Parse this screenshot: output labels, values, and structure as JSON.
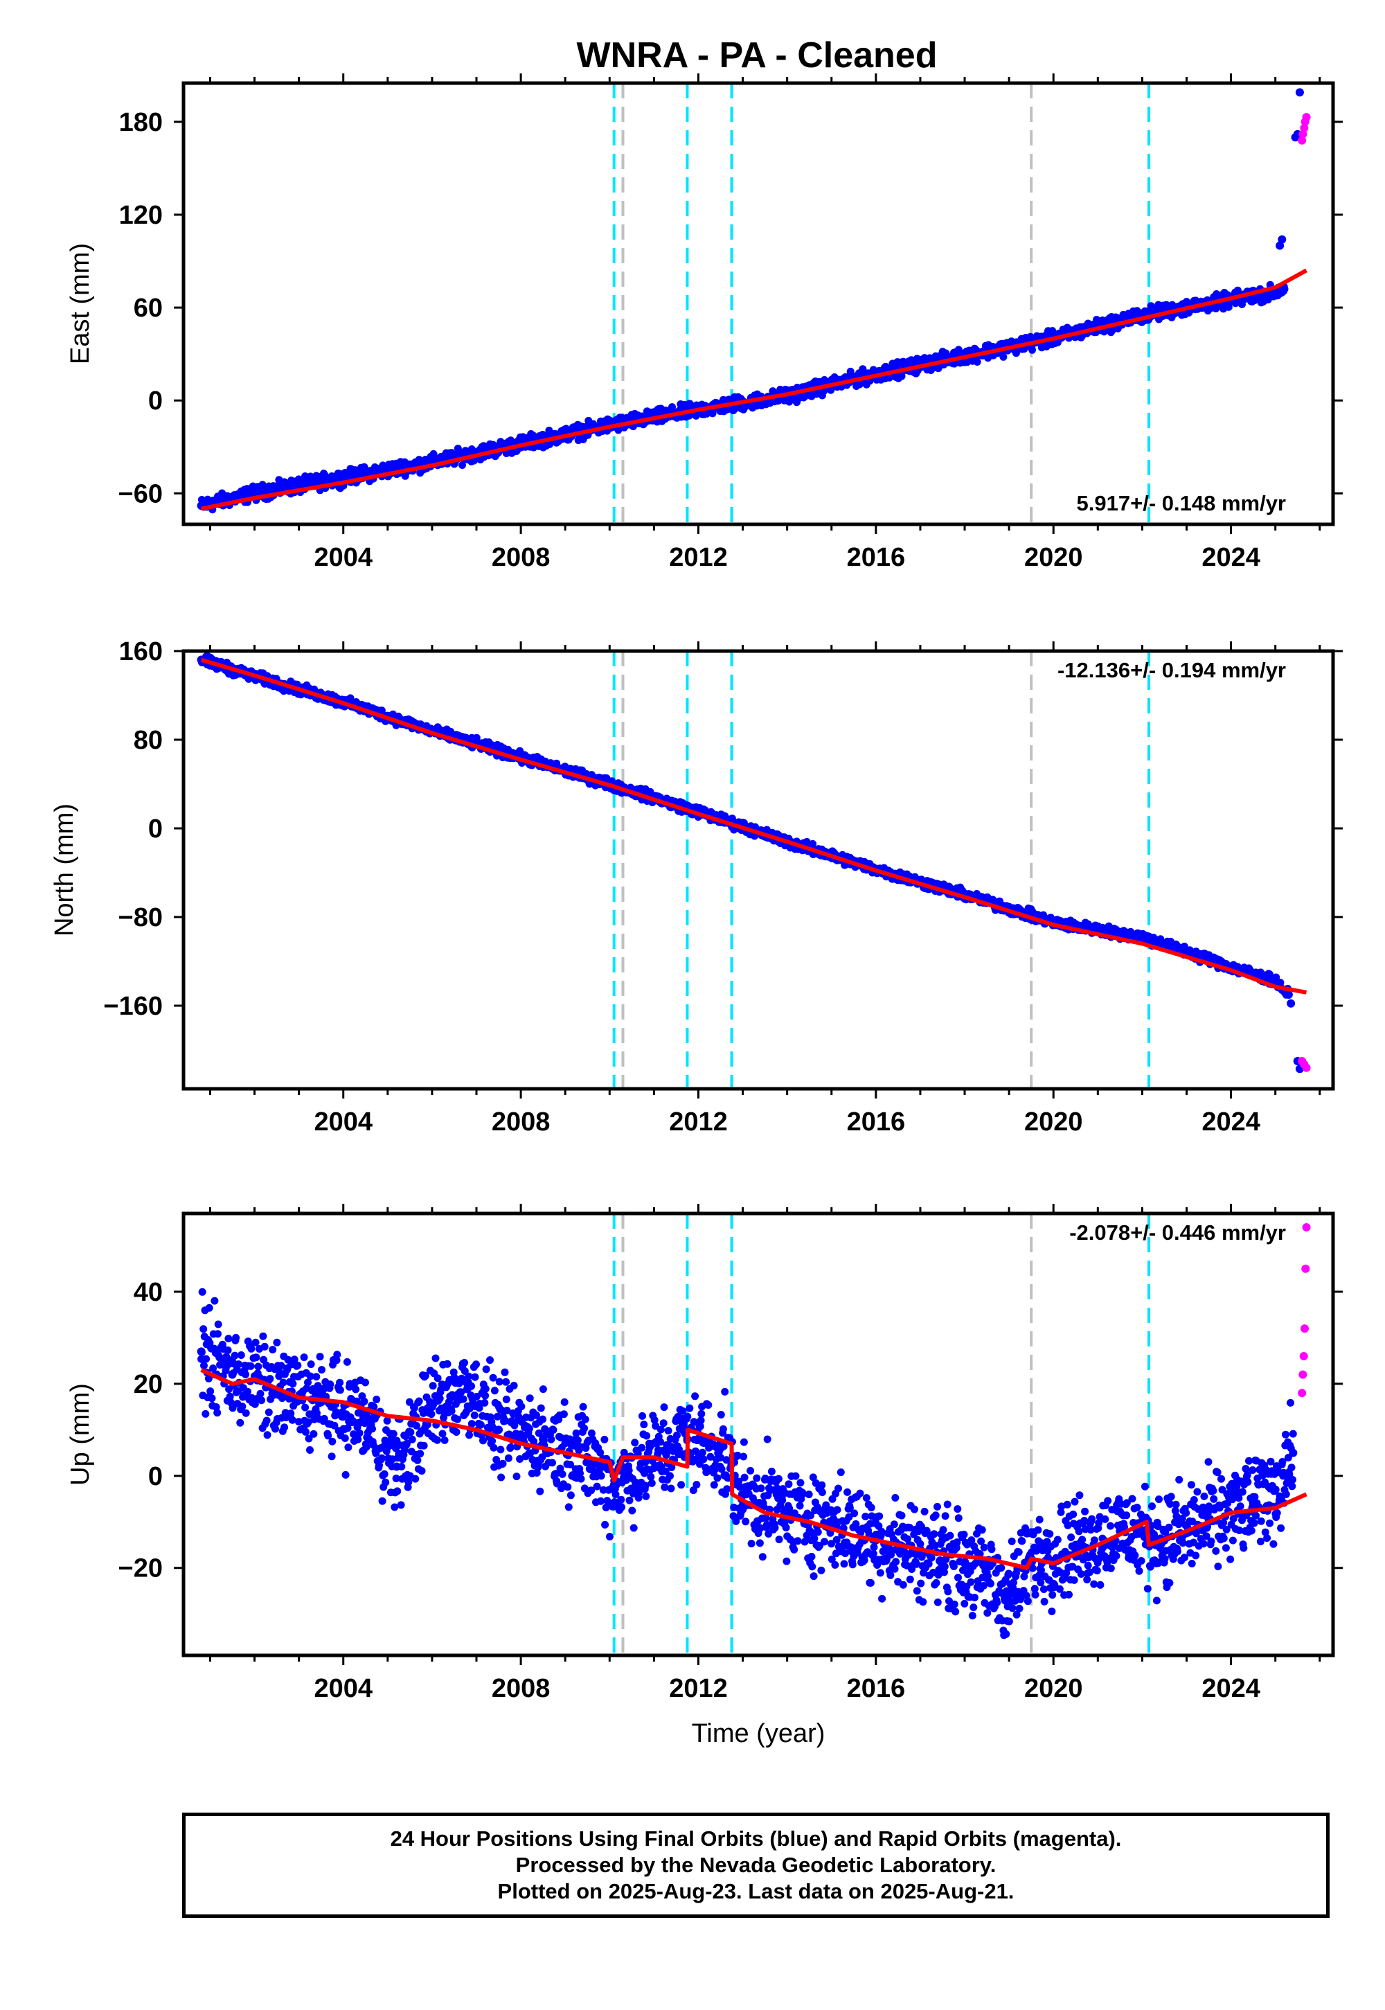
{
  "title": "WNRA  - PA - Cleaned",
  "xaxis_label": "Time (year)",
  "x_ticks": [
    2004,
    2008,
    2012,
    2016,
    2020,
    2024
  ],
  "xlim": [
    2000.4,
    2026.3
  ],
  "colors": {
    "final_orbits": "#0000ff",
    "rapid_orbits": "#ff00ff",
    "model": "#ff0000",
    "equipment_change": "#00e5ff",
    "other_event": "#c0c0c0"
  },
  "event_lines": [
    {
      "year": 2010.1,
      "color": "equipment_change"
    },
    {
      "year": 2010.3,
      "color": "other_event"
    },
    {
      "year": 2011.75,
      "color": "equipment_change"
    },
    {
      "year": 2012.75,
      "color": "equipment_change"
    },
    {
      "year": 2019.5,
      "color": "other_event"
    },
    {
      "year": 2022.15,
      "color": "equipment_change"
    }
  ],
  "chart_data": [
    {
      "type": "scatter",
      "ylabel": "East (mm)",
      "ylim": [
        -80,
        205
      ],
      "y_ticks": [
        -60,
        0,
        60,
        120,
        180
      ],
      "rate_text": "5.917+/- 0.148 mm/yr",
      "rate_position": "bottom-right",
      "series": [
        {
          "color": "final_orbits",
          "x": [
            2000.8,
            2002,
            2004,
            2006,
            2008,
            2010,
            2012,
            2014,
            2016,
            2018,
            2020,
            2022,
            2024,
            2025.0,
            2025.2
          ],
          "y": [
            -68,
            -60,
            -50,
            -40,
            -28,
            -16,
            -6,
            3,
            17,
            29,
            40,
            55,
            65,
            70,
            72
          ]
        },
        {
          "color": "final_orbits",
          "x": [
            2025.1,
            2025.15,
            2025.45,
            2025.5,
            2025.55
          ],
          "y": [
            100,
            104,
            170,
            172,
            199
          ]
        },
        {
          "color": "rapid_orbits",
          "x": [
            2025.6,
            2025.62,
            2025.65,
            2025.67,
            2025.7
          ],
          "y": [
            168,
            172,
            176,
            180,
            183
          ]
        }
      ],
      "model": {
        "x": [
          2000.8,
          2002,
          2004,
          2006,
          2008,
          2010,
          2012,
          2014,
          2016,
          2018,
          2020,
          2022,
          2024,
          2025.0,
          2025.7
        ],
        "y": [
          -70,
          -63,
          -53,
          -42,
          -29,
          -17,
          -6,
          4,
          16,
          28,
          40,
          53,
          66,
          73,
          84
        ]
      }
    },
    {
      "type": "scatter",
      "ylabel": "North (mm)",
      "ylim": [
        -235,
        160
      ],
      "y_ticks": [
        -160,
        -80,
        0,
        80,
        160
      ],
      "rate_text": "-12.136+/- 0.194 mm/yr",
      "rate_position": "top-right",
      "series": [
        {
          "color": "final_orbits",
          "x": [
            2000.8,
            2002,
            2004,
            2006,
            2008,
            2010,
            2012,
            2014,
            2016,
            2018,
            2020,
            2022,
            2024,
            2025.0,
            2025.3
          ],
          "y": [
            152,
            137,
            114,
            88,
            64,
            40,
            15,
            -12,
            -37,
            -60,
            -85,
            -98,
            -125,
            -138,
            -150
          ]
        },
        {
          "color": "final_orbits",
          "x": [
            2025.35,
            2025.5,
            2025.55
          ],
          "y": [
            -158,
            -210,
            -217
          ]
        },
        {
          "color": "rapid_orbits",
          "x": [
            2025.6,
            2025.65,
            2025.7
          ],
          "y": [
            -210,
            -213,
            -216
          ]
        }
      ],
      "model": {
        "x": [
          2000.8,
          2002,
          2004,
          2006,
          2008,
          2010,
          2012,
          2014,
          2016,
          2018,
          2020,
          2022,
          2024,
          2025.0,
          2025.7
        ],
        "y": [
          152,
          138,
          113,
          86,
          62,
          39,
          13,
          -12,
          -38,
          -62,
          -87,
          -104,
          -128,
          -143,
          -148
        ]
      }
    },
    {
      "type": "scatter",
      "ylabel": "Up (mm)",
      "ylim": [
        -39,
        57
      ],
      "y_ticks": [
        -20,
        0,
        20,
        40
      ],
      "rate_text": "-2.078+/- 0.446 mm/yr",
      "rate_position": "top-right",
      "series": [
        {
          "color": "final_orbits",
          "x": [
            2000.8,
            2001.5,
            2002.5,
            2003.5,
            2004.5,
            2005.2,
            2006,
            2006.8,
            2007.5,
            2008.5,
            2009.5,
            2010.1,
            2010.8,
            2011.75,
            2012.5,
            2013,
            2014,
            2015,
            2016,
            2017,
            2018,
            2019,
            2019.5,
            2020.5,
            2021.5,
            2022.5,
            2023.5,
            2024.5,
            2025.0,
            2025.4
          ],
          "y": [
            27,
            22,
            18,
            16,
            12,
            2,
            15,
            19,
            10,
            8,
            4,
            -2,
            3,
            8,
            6,
            -4,
            -8,
            -10,
            -14,
            -16,
            -19,
            -26,
            -18,
            -15,
            -12,
            -14,
            -10,
            -6,
            -3,
            5
          ]
        },
        {
          "color": "rapid_orbits",
          "x": [
            2025.6,
            2025.62,
            2025.64,
            2025.66,
            2025.68,
            2025.7
          ],
          "y": [
            18,
            22,
            26,
            32,
            45,
            54
          ]
        }
      ],
      "model": {
        "x": [
          2000.8,
          2001.5,
          2002,
          2003,
          2004,
          2005,
          2006,
          2007,
          2008,
          2009,
          2010,
          2010.1,
          2010.3,
          2011,
          2011.75,
          2011.76,
          2012.75,
          2012.76,
          2013.5,
          2014.5,
          2015.5,
          2016.5,
          2017.5,
          2018.5,
          2019.4,
          2019.5,
          2020,
          2021,
          2022.1,
          2022.15,
          2023,
          2024,
          2025,
          2025.7
        ],
        "y": [
          23,
          20,
          21,
          17,
          16,
          13,
          12,
          10,
          7,
          5,
          3,
          -1,
          4,
          4,
          2,
          10,
          7,
          -4,
          -8,
          -10,
          -13,
          -15,
          -17,
          -18,
          -20,
          -18,
          -19,
          -15,
          -10,
          -15,
          -12,
          -8,
          -7,
          -4
        ]
      }
    }
  ],
  "footer_lines": [
    "24 Hour Positions Using Final Orbits (blue) and Rapid Orbits (magenta).",
    "Processed by the Nevada Geodetic Laboratory.",
    "Plotted on 2025-Aug-23. Last data on 2025-Aug-21."
  ]
}
